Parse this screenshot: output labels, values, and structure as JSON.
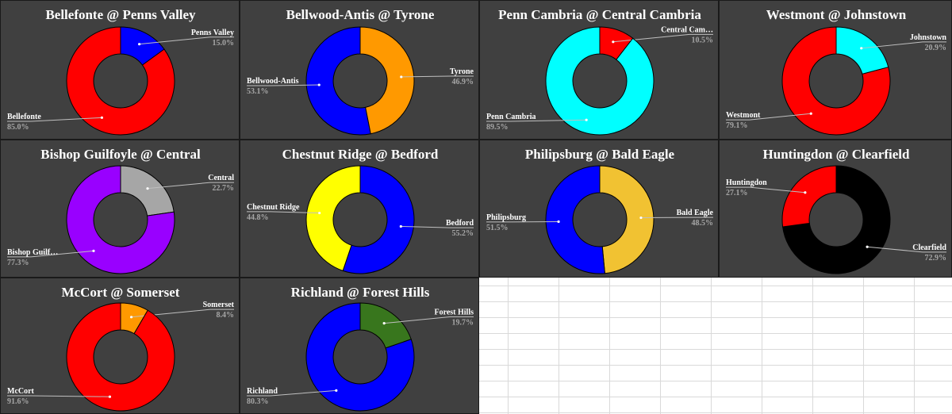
{
  "chart_data": [
    {
      "type": "donut",
      "title": "Bellefonte @ Penns Valley",
      "slices": [
        {
          "label": "Penns Valley",
          "value": 15.0,
          "pct": "15.0%",
          "color": "#0000ff"
        },
        {
          "label": "Bellefonte",
          "value": 85.0,
          "pct": "85.0%",
          "color": "#ff0000"
        }
      ]
    },
    {
      "type": "donut",
      "title": "Bellwood-Antis @ Tyrone",
      "slices": [
        {
          "label": "Tyrone",
          "value": 46.9,
          "pct": "46.9%",
          "color": "#ff9900"
        },
        {
          "label": "Bellwood-Antis",
          "value": 53.1,
          "pct": "53.1%",
          "color": "#0000ff"
        }
      ]
    },
    {
      "type": "donut",
      "title": "Penn Cambria @ Central Cambria",
      "slices": [
        {
          "label": "Central Cam…",
          "value": 10.5,
          "pct": "10.5%",
          "color": "#ff0000"
        },
        {
          "label": "Penn Cambria",
          "value": 89.5,
          "pct": "89.5%",
          "color": "#00ffff"
        }
      ]
    },
    {
      "type": "donut",
      "title": "Westmont @ Johnstown",
      "slices": [
        {
          "label": "Johnstown",
          "value": 20.9,
          "pct": "20.9%",
          "color": "#00ffff"
        },
        {
          "label": "Westmont",
          "value": 79.1,
          "pct": "79.1%",
          "color": "#ff0000"
        }
      ]
    },
    {
      "type": "donut",
      "title": "Bishop Guilfoyle @ Central",
      "slices": [
        {
          "label": "Central",
          "value": 22.7,
          "pct": "22.7%",
          "color": "#a6a6a6"
        },
        {
          "label": "Bishop Guilf…",
          "value": 77.3,
          "pct": "77.3%",
          "color": "#9900ff"
        }
      ]
    },
    {
      "type": "donut",
      "title": "Chestnut Ridge @ Bedford",
      "slices": [
        {
          "label": "Bedford",
          "value": 55.2,
          "pct": "55.2%",
          "color": "#0000ff"
        },
        {
          "label": "Chestnut Ridge",
          "value": 44.8,
          "pct": "44.8%",
          "color": "#ffff00"
        }
      ]
    },
    {
      "type": "donut",
      "title": "Philipsburg @ Bald Eagle",
      "slices": [
        {
          "label": "Bald Eagle",
          "value": 48.5,
          "pct": "48.5%",
          "color": "#f1c232"
        },
        {
          "label": "Philipsburg",
          "value": 51.5,
          "pct": "51.5%",
          "color": "#0000ff"
        }
      ]
    },
    {
      "type": "donut",
      "title": "Huntingdon @ Clearfield",
      "slices": [
        {
          "label": "Clearfield",
          "value": 72.9,
          "pct": "72.9%",
          "color": "#000000"
        },
        {
          "label": "Huntingdon",
          "value": 27.1,
          "pct": "27.1%",
          "color": "#ff0000"
        }
      ]
    },
    {
      "type": "donut",
      "title": "McCort @ Somerset",
      "slices": [
        {
          "label": "Somerset",
          "value": 8.4,
          "pct": "8.4%",
          "color": "#ff9900"
        },
        {
          "label": "McCort",
          "value": 91.6,
          "pct": "91.6%",
          "color": "#ff0000"
        }
      ]
    },
    {
      "type": "donut",
      "title": "Richland @ Forest Hills",
      "slices": [
        {
          "label": "Forest Hills",
          "value": 19.7,
          "pct": "19.7%",
          "color": "#38761d"
        },
        {
          "label": "Richland",
          "value": 80.3,
          "pct": "80.3%",
          "color": "#0000ff"
        }
      ]
    }
  ]
}
